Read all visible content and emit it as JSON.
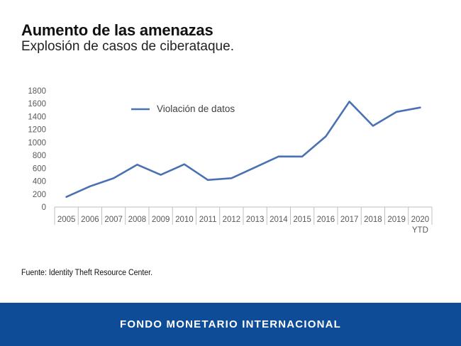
{
  "header": {
    "title": "Aumento de las amenazas",
    "subtitle": "Explosión de casos de ciberataque."
  },
  "chart_data": {
    "type": "line",
    "title": "",
    "xlabel": "",
    "ylabel": "",
    "categories": [
      "2005",
      "2006",
      "2007",
      "2008",
      "2009",
      "2010",
      "2011",
      "2012",
      "2013",
      "2014",
      "2015",
      "2016",
      "2017",
      "2018",
      "2019",
      "2020\nYTD"
    ],
    "series": [
      {
        "name": "Violación de datos",
        "values": [
          157,
          321,
          446,
          656,
          498,
          662,
          419,
          447,
          614,
          783,
          781,
          1093,
          1632,
          1257,
          1473,
          1540
        ]
      }
    ],
    "ylim": [
      0,
      1800
    ],
    "yticks": [
      0,
      200,
      400,
      600,
      800,
      1000,
      1200,
      1400,
      1600,
      1800
    ],
    "grid": false,
    "legend_position": "top-left",
    "colors": {
      "line": "#4a72b2",
      "axis": "#bfbfbf",
      "tick_text": "#595959"
    }
  },
  "source": "Fuente: Identity Theft Resource Center.",
  "footer": {
    "label": "FONDO MONETARIO INTERNACIONAL",
    "background": "#0f4c97"
  }
}
